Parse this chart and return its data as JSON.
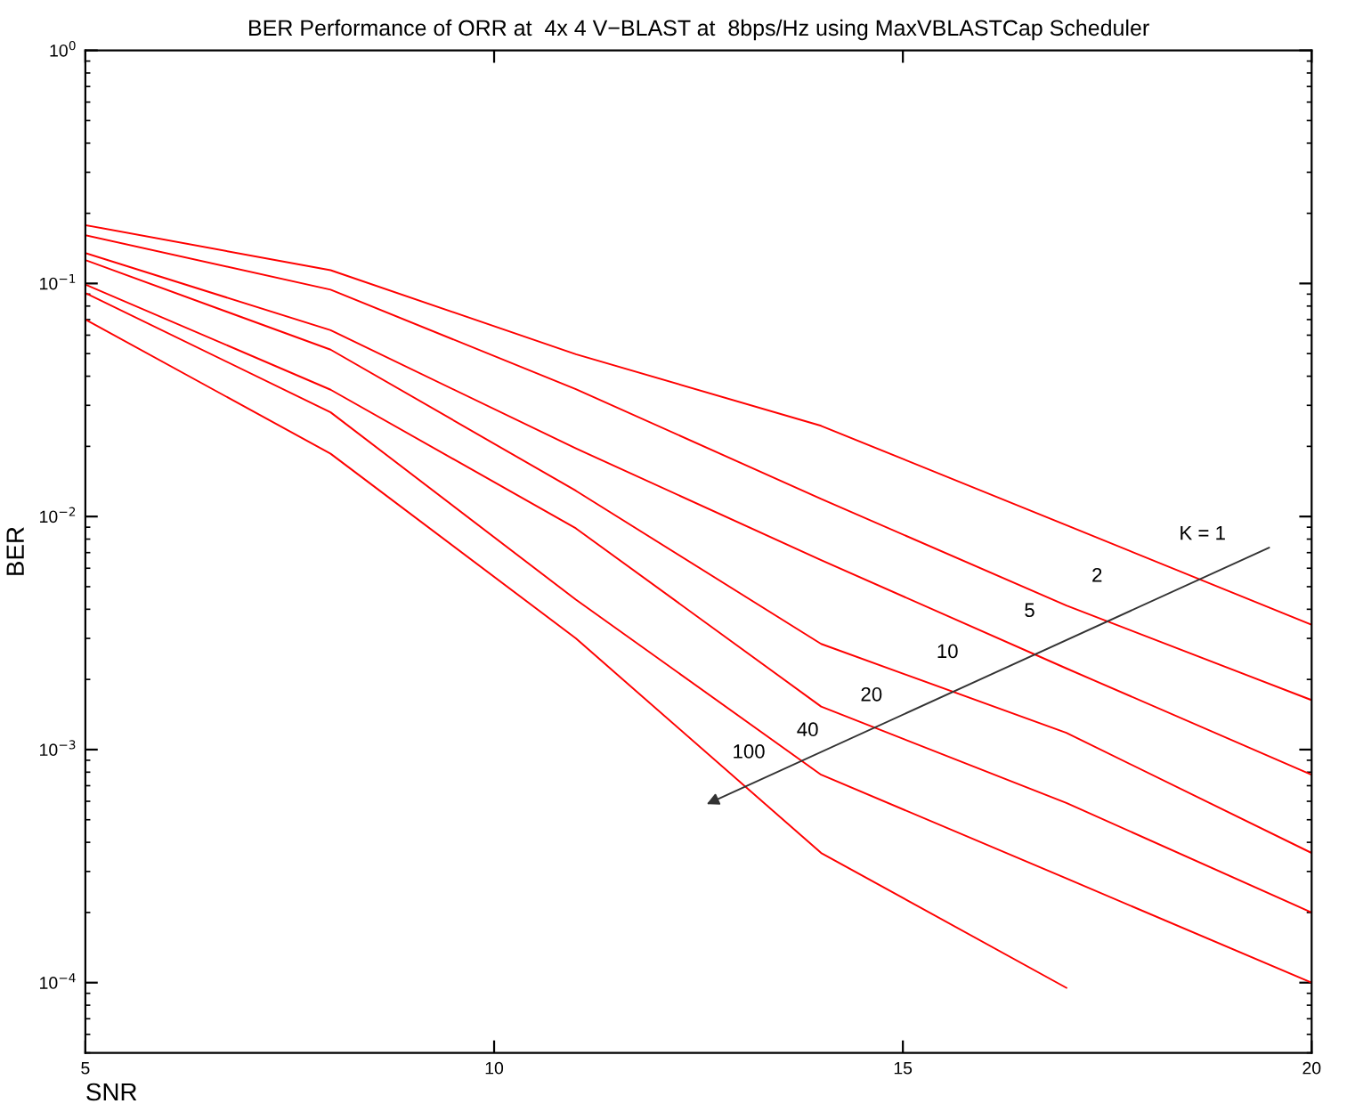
{
  "chart_data": {
    "type": "line",
    "title": "BER Performance of ORR at  4x 4 V−BLAST at  8bps/Hz using MaxVBLASTCap Scheduler",
    "xlabel": "SNR",
    "ylabel": "BER",
    "log": "y",
    "grid": false,
    "marker": "none",
    "line_style": "solid",
    "x": [
      5,
      8,
      11,
      14,
      17,
      20
    ],
    "xlim": [
      5,
      20
    ],
    "xticks": [
      5,
      10,
      15,
      20
    ],
    "ylim": [
      5e-05,
      1
    ],
    "yticks": [
      {
        "value": 1,
        "label": "10$^{0}$"
      },
      {
        "value": 0.1,
        "label": "10$^{−1}$"
      },
      {
        "value": 0.01,
        "label": "10$^{−2}$"
      },
      {
        "value": 0.001,
        "label": "10$^{−3}$"
      },
      {
        "value": 0.0001,
        "label": "10$^{−4}$"
      }
    ],
    "series": [
      {
        "color": "#ff0000",
        "values": [
          0.178,
          0.114,
          0.0497,
          0.0245,
          0.00918,
          0.00343
        ]
      },
      {
        "color": "#ff0000",
        "values": [
          0.161,
          0.094,
          0.0352,
          0.0119,
          0.00415,
          0.00163
        ]
      },
      {
        "color": "#ff0000",
        "values": [
          0.135,
          0.063,
          0.0196,
          0.0065,
          0.00223,
          0.00078
        ]
      },
      {
        "color": "#ff0000",
        "values": [
          0.126,
          0.052,
          0.0129,
          0.00284,
          0.00118,
          0.00036
        ]
      },
      {
        "color": "#ff0000",
        "values": [
          0.099,
          0.035,
          0.0089,
          0.00153,
          0.00059,
          0.0002
        ]
      },
      {
        "color": "#ff0000",
        "values": [
          0.091,
          0.028,
          0.0044,
          0.00078,
          0.00028,
          0.0001
        ]
      },
      {
        "color": "#ff0000",
        "values": [
          0.07,
          0.0186,
          0.003,
          0.00036,
          9.5e-05,
          null
        ]
      }
    ],
    "annotations": [
      "K = 1",
      "2",
      "5",
      "10",
      "20",
      "40",
      "100"
    ]
  }
}
